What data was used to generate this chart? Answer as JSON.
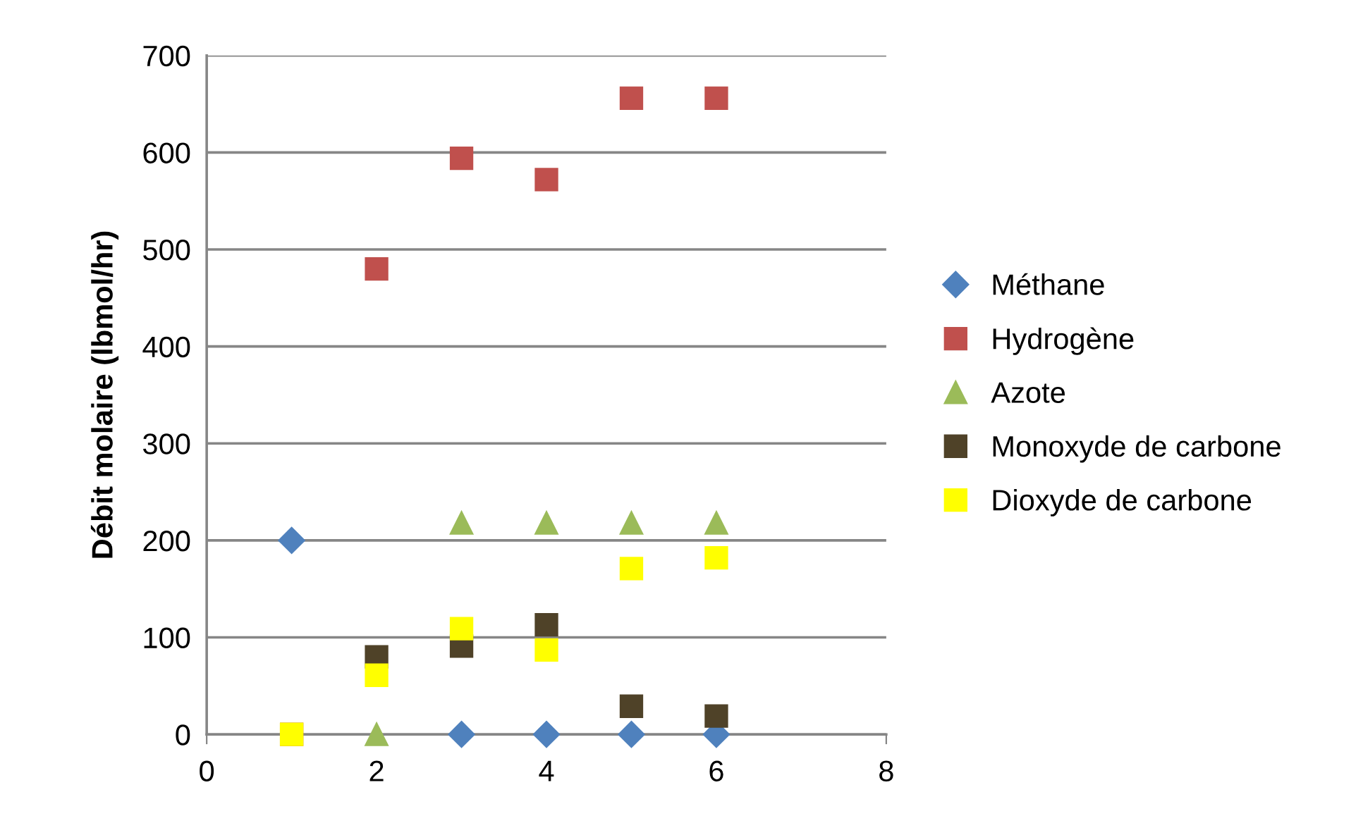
{
  "chart_data": {
    "type": "scatter",
    "ylabel": "Débit molaire (lbmol/hr)",
    "x": [
      1,
      2,
      3,
      4,
      5,
      6
    ],
    "series": [
      {
        "name": "Méthane",
        "color": "#4f81bd",
        "marker": "diamond",
        "values": [
          200,
          null,
          0,
          0,
          0,
          0
        ]
      },
      {
        "name": "Hydrogène",
        "color": "#c0504d",
        "marker": "square",
        "values": [
          0,
          480,
          594,
          572,
          656,
          656
        ]
      },
      {
        "name": "Azote",
        "color": "#9bbb59",
        "marker": "triangle",
        "values": [
          null,
          0,
          218,
          218,
          218,
          218
        ]
      },
      {
        "name": "Monoxyde de carbone",
        "color": "#4f4228",
        "marker": "square",
        "values": [
          null,
          80,
          91,
          113,
          29,
          19
        ]
      },
      {
        "name": "Dioxyde de carbone",
        "color": "#ffff00",
        "marker": "square",
        "values": [
          0,
          61,
          109,
          87,
          171,
          182
        ]
      }
    ],
    "xlim": [
      0,
      8
    ],
    "xticks": [
      0,
      2,
      4,
      6,
      8
    ],
    "ylim": [
      0,
      700
    ],
    "yticks": [
      0,
      100,
      200,
      300,
      400,
      500,
      600,
      700
    ],
    "grid": "y",
    "legend": "right"
  }
}
